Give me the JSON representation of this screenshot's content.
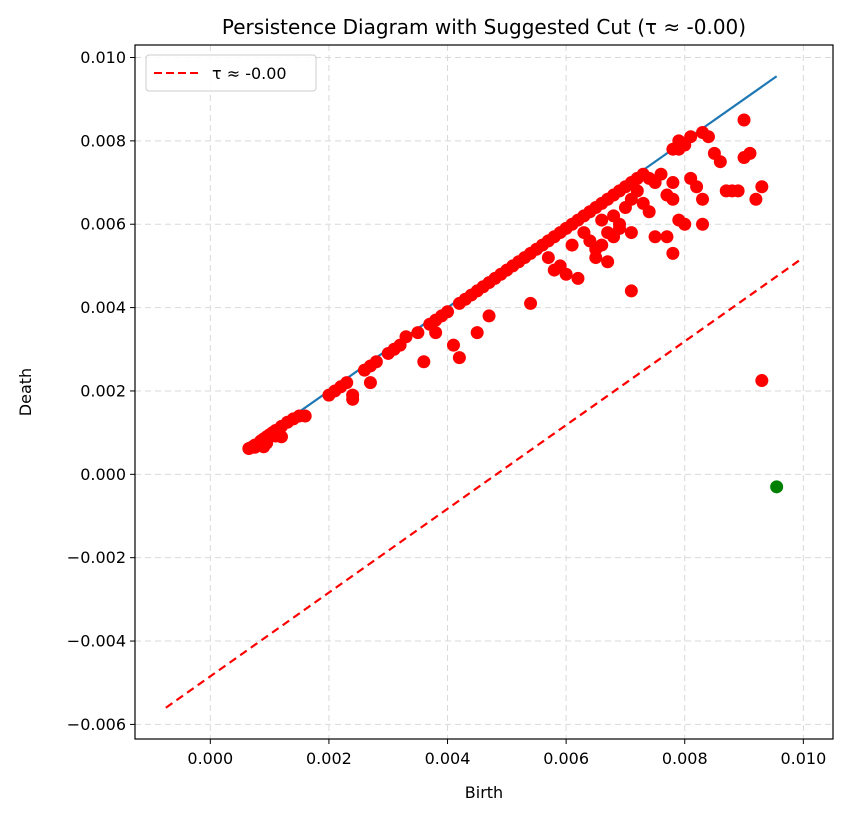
{
  "chart_data": {
    "type": "scatter",
    "title": "Persistence Diagram with Suggested Cut (τ ≈ -0.00)",
    "xlabel": "Birth",
    "ylabel": "Death",
    "xlim": [
      -0.00127,
      0.0105
    ],
    "ylim": [
      -0.00635,
      0.0103
    ],
    "x_ticks": [
      0.0,
      0.002,
      0.004,
      0.006,
      0.008,
      0.01
    ],
    "x_tick_labels": [
      "0.000",
      "0.002",
      "0.004",
      "0.006",
      "0.008",
      "0.010"
    ],
    "y_ticks": [
      -0.006,
      -0.004,
      -0.002,
      0.0,
      0.002,
      0.004,
      0.006,
      0.008,
      0.01
    ],
    "y_tick_labels": [
      "−0.006",
      "−0.004",
      "−0.002",
      "0.000",
      "0.002",
      "0.004",
      "0.006",
      "0.008",
      "0.010"
    ],
    "grid": true,
    "legend": {
      "location": "top-left",
      "entries": [
        {
          "label": "τ ≈ -0.00",
          "color": "#ff0000",
          "style": "dashed"
        }
      ]
    },
    "diagonal": {
      "color": "#1f77b4",
      "x": [
        0.00065,
        0.00955
      ],
      "y": [
        0.00065,
        0.00955
      ]
    },
    "cut_line": {
      "label": "τ ≈ -0.00",
      "color": "#ff0000",
      "x": [
        -0.00075,
        0.00995
      ],
      "y": [
        -0.0056,
        0.00515
      ]
    },
    "series": [
      {
        "color": "#ff0000",
        "points": [
          [
            0.00065,
            0.00062
          ],
          [
            0.0007,
            0.00065
          ],
          [
            0.00075,
            0.0007
          ],
          [
            0.0008,
            0.00072
          ],
          [
            0.00085,
            0.0008
          ],
          [
            0.0009,
            0.00085
          ],
          [
            0.00095,
            0.0009
          ],
          [
            0.001,
            0.00095
          ],
          [
            0.00105,
            0.001
          ],
          [
            0.0011,
            0.00105
          ],
          [
            0.0012,
            0.00115
          ],
          [
            0.0013,
            0.00125
          ],
          [
            0.0014,
            0.00133
          ],
          [
            0.0015,
            0.0014
          ],
          [
            0.0016,
            0.0014
          ],
          [
            0.00075,
            0.00065
          ],
          [
            0.0009,
            0.00066
          ],
          [
            0.0011,
            0.00092
          ],
          [
            0.0012,
            0.0009
          ],
          [
            0.00095,
            0.00075
          ],
          [
            0.002,
            0.0019
          ],
          [
            0.0021,
            0.002
          ],
          [
            0.0022,
            0.0021
          ],
          [
            0.0023,
            0.0022
          ],
          [
            0.0024,
            0.0019
          ],
          [
            0.0024,
            0.0018
          ],
          [
            0.0026,
            0.0025
          ],
          [
            0.0027,
            0.0026
          ],
          [
            0.0027,
            0.0022
          ],
          [
            0.0028,
            0.0027
          ],
          [
            0.003,
            0.0029
          ],
          [
            0.0031,
            0.003
          ],
          [
            0.0032,
            0.0031
          ],
          [
            0.0033,
            0.0033
          ],
          [
            0.0035,
            0.0034
          ],
          [
            0.0036,
            0.0027
          ],
          [
            0.0037,
            0.0036
          ],
          [
            0.0038,
            0.0037
          ],
          [
            0.0038,
            0.0034
          ],
          [
            0.0039,
            0.0038
          ],
          [
            0.004,
            0.0039
          ],
          [
            0.0041,
            0.0031
          ],
          [
            0.0042,
            0.0028
          ],
          [
            0.0042,
            0.0041
          ],
          [
            0.0043,
            0.0042
          ],
          [
            0.0044,
            0.0043
          ],
          [
            0.0045,
            0.0044
          ],
          [
            0.0045,
            0.0034
          ],
          [
            0.0046,
            0.0045
          ],
          [
            0.0047,
            0.0046
          ],
          [
            0.0047,
            0.0038
          ],
          [
            0.0048,
            0.0047
          ],
          [
            0.0049,
            0.0048
          ],
          [
            0.005,
            0.0049
          ],
          [
            0.0051,
            0.005
          ],
          [
            0.0052,
            0.0051
          ],
          [
            0.0053,
            0.0052
          ],
          [
            0.0054,
            0.0053
          ],
          [
            0.0054,
            0.0041
          ],
          [
            0.0055,
            0.0054
          ],
          [
            0.0056,
            0.0055
          ],
          [
            0.0057,
            0.0056
          ],
          [
            0.0058,
            0.0057
          ],
          [
            0.0059,
            0.0058
          ],
          [
            0.006,
            0.0059
          ],
          [
            0.0061,
            0.006
          ],
          [
            0.0062,
            0.0061
          ],
          [
            0.0063,
            0.0062
          ],
          [
            0.0064,
            0.0063
          ],
          [
            0.0065,
            0.0064
          ],
          [
            0.0066,
            0.0065
          ],
          [
            0.0067,
            0.0066
          ],
          [
            0.0068,
            0.0067
          ],
          [
            0.0069,
            0.0068
          ],
          [
            0.007,
            0.0069
          ],
          [
            0.0071,
            0.007
          ],
          [
            0.0072,
            0.0071
          ],
          [
            0.0073,
            0.0072
          ],
          [
            0.0074,
            0.0071
          ],
          [
            0.0075,
            0.007
          ],
          [
            0.0057,
            0.0052
          ],
          [
            0.0058,
            0.0049
          ],
          [
            0.0059,
            0.005
          ],
          [
            0.006,
            0.0048
          ],
          [
            0.0061,
            0.0055
          ],
          [
            0.0062,
            0.0047
          ],
          [
            0.0063,
            0.0058
          ],
          [
            0.0064,
            0.0056
          ],
          [
            0.0065,
            0.0054
          ],
          [
            0.0066,
            0.0061
          ],
          [
            0.0067,
            0.0058
          ],
          [
            0.0068,
            0.0062
          ],
          [
            0.0069,
            0.006
          ],
          [
            0.007,
            0.0064
          ],
          [
            0.0071,
            0.0066
          ],
          [
            0.0072,
            0.0068
          ],
          [
            0.0073,
            0.0065
          ],
          [
            0.0074,
            0.0063
          ],
          [
            0.0075,
            0.0057
          ],
          [
            0.0065,
            0.0052
          ],
          [
            0.0066,
            0.0055
          ],
          [
            0.0067,
            0.0051
          ],
          [
            0.0068,
            0.0057
          ],
          [
            0.0069,
            0.0059
          ],
          [
            0.0071,
            0.0058
          ],
          [
            0.0071,
            0.0044
          ],
          [
            0.0078,
            0.0078
          ],
          [
            0.0079,
            0.008
          ],
          [
            0.008,
            0.0079
          ],
          [
            0.0081,
            0.0081
          ],
          [
            0.0083,
            0.0082
          ],
          [
            0.0084,
            0.0081
          ],
          [
            0.0085,
            0.0077
          ],
          [
            0.0086,
            0.0075
          ],
          [
            0.0087,
            0.0068
          ],
          [
            0.0088,
            0.0068
          ],
          [
            0.0089,
            0.0068
          ],
          [
            0.009,
            0.0076
          ],
          [
            0.0091,
            0.0077
          ],
          [
            0.009,
            0.0085
          ],
          [
            0.0092,
            0.0066
          ],
          [
            0.0093,
            0.0069
          ],
          [
            0.0077,
            0.0067
          ],
          [
            0.0078,
            0.0066
          ],
          [
            0.0079,
            0.0061
          ],
          [
            0.008,
            0.006
          ],
          [
            0.0081,
            0.0071
          ],
          [
            0.0082,
            0.0069
          ],
          [
            0.0083,
            0.0066
          ],
          [
            0.0083,
            0.006
          ],
          [
            0.0078,
            0.007
          ],
          [
            0.0078,
            0.0053
          ],
          [
            0.0077,
            0.0057
          ],
          [
            0.0076,
            0.0072
          ],
          [
            0.0079,
            0.0078
          ],
          [
            0.0093,
            0.00225
          ]
        ]
      },
      {
        "color": "#008000",
        "points": [
          [
            0.00955,
            -0.0003
          ]
        ]
      }
    ]
  }
}
